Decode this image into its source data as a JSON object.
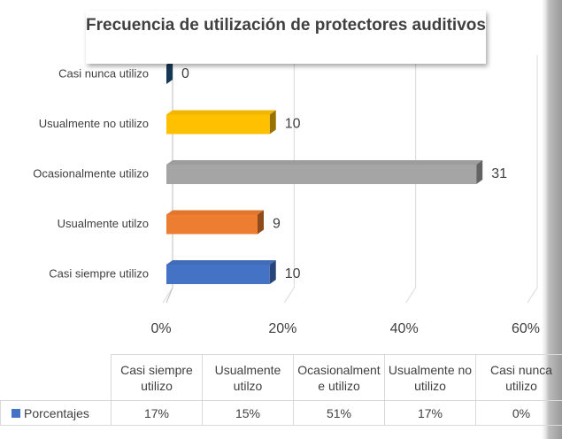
{
  "chart_data": {
    "type": "bar",
    "title": "Frecuencia de utilización de protectores auditivos",
    "categories": [
      "Casi siempre utilizo",
      "Usualmente utilzo",
      "Ocasionalmente utilizo",
      "Usualmente no utilizo",
      "Casi nunca utilizo"
    ],
    "colors": [
      "#4472c4",
      "#ed7d31",
      "#a5a5a5",
      "#ffc000",
      "#255e91"
    ],
    "series": [
      {
        "name": "Porcentajes",
        "color": "#4472c4",
        "values": [
          17,
          15,
          51,
          17,
          0
        ],
        "value_labels": [
          "17%",
          "15%",
          "51%",
          "17%",
          "0%"
        ]
      }
    ],
    "counts": [
      10,
      9,
      31,
      10,
      0
    ],
    "xlim": [
      0,
      60
    ],
    "xticks": [
      {
        "value": 0,
        "label": "0%"
      },
      {
        "value": 20,
        "label": "20%"
      },
      {
        "value": 40,
        "label": "40%"
      },
      {
        "value": 60,
        "label": "60%"
      }
    ],
    "grid": true
  }
}
